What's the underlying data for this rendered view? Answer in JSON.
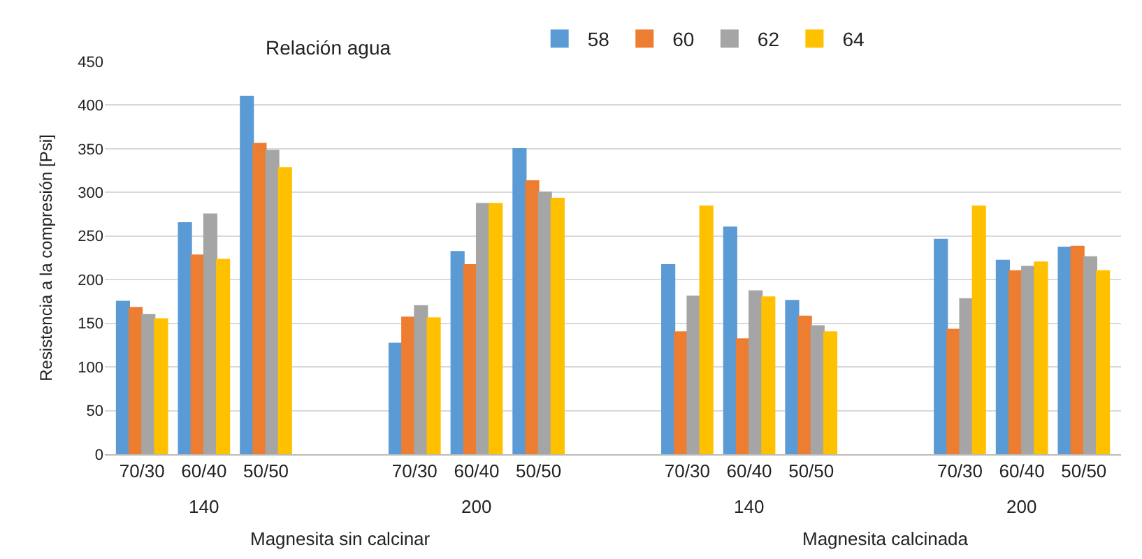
{
  "chart_data": {
    "type": "bar",
    "ylabel": "Resistencia a la compresión [Psi]",
    "legend_title": "Relación agua",
    "categories": [
      "70/30",
      "60/40",
      "50/50",
      "70/30",
      "60/40",
      "50/50",
      "70/30",
      "60/40",
      "50/50",
      "70/30",
      "60/40",
      "50/50"
    ],
    "series": [
      {
        "name": "58",
        "color": "#5b9bd5",
        "values": [
          175,
          265,
          410,
          127,
          232,
          350,
          217,
          260,
          176,
          246,
          222,
          237
        ]
      },
      {
        "name": "60",
        "color": "#ed7d31",
        "values": [
          168,
          228,
          356,
          157,
          217,
          313,
          140,
          132,
          158,
          143,
          210,
          238
        ]
      },
      {
        "name": "62",
        "color": "#a5a5a5",
        "values": [
          160,
          275,
          348,
          170,
          287,
          300,
          181,
          187,
          147,
          178,
          215,
          226
        ]
      },
      {
        "name": "64",
        "color": "#ffc000",
        "values": [
          155,
          223,
          328,
          156,
          287,
          293,
          284,
          180,
          140,
          284,
          220,
          210
        ]
      }
    ],
    "annotations": [
      "140",
      "200",
      "140",
      "200",
      "Magnesita sin calcinar",
      "Magnesita calcinada"
    ],
    "ylim": [
      0,
      450
    ],
    "yticks": [
      0,
      50,
      100,
      150,
      200,
      250,
      300,
      350,
      400,
      450
    ],
    "grid": "y",
    "legend": "top right"
  }
}
